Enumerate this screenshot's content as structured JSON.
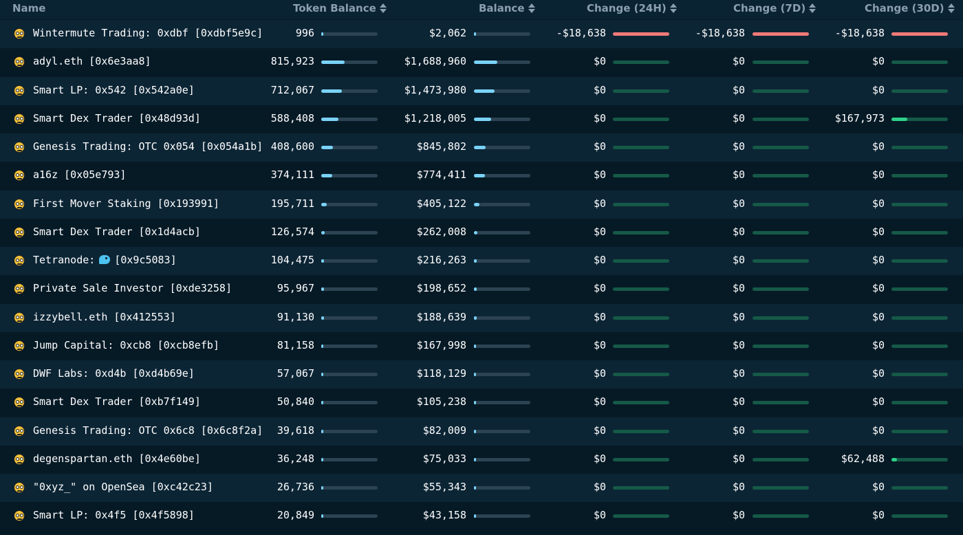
{
  "header": {
    "name": "Name",
    "token_balance": "Token Balance",
    "balance": "Balance",
    "change_24h": "Change (24H)",
    "change_7d": "Change (7D)",
    "change_30d": "Change (30D)"
  },
  "colors": {
    "row_even": "#0c2535",
    "row_odd": "#061a26",
    "balance_bar": "#7ad3f7",
    "negative_change": "#f07a78",
    "positive_change": "#2fd08a",
    "neutral_track": "#155a47"
  },
  "rows": [
    {
      "name": "Wintermute Trading: 0xdbf [0xdbf5e9c]",
      "token_balance": "996",
      "token_fill": 0.0,
      "balance": "$2,062",
      "balance_fill": 0.0,
      "c24": "-$18,638",
      "c24_fill": 1.0,
      "c24_dir": "neg",
      "c7": "-$18,638",
      "c7_fill": 1.0,
      "c7_dir": "neg",
      "c30": "-$18,638",
      "c30_fill": 1.0,
      "c30_dir": "neg"
    },
    {
      "name": "adyl.eth [0x6e3aa8]",
      "token_balance": "815,923",
      "token_fill": 0.42,
      "balance": "$1,688,960",
      "balance_fill": 0.42,
      "c24": "$0",
      "c24_fill": 0,
      "c24_dir": "zero",
      "c7": "$0",
      "c7_fill": 0,
      "c7_dir": "zero",
      "c30": "$0",
      "c30_fill": 0,
      "c30_dir": "zero"
    },
    {
      "name": "Smart LP: 0x542 [0x542a0e]",
      "token_balance": "712,067",
      "token_fill": 0.37,
      "balance": "$1,473,980",
      "balance_fill": 0.37,
      "c24": "$0",
      "c24_fill": 0,
      "c24_dir": "zero",
      "c7": "$0",
      "c7_fill": 0,
      "c7_dir": "zero",
      "c30": "$0",
      "c30_fill": 0,
      "c30_dir": "zero"
    },
    {
      "name": "Smart Dex Trader [0x48d93d]",
      "token_balance": "588,408",
      "token_fill": 0.3,
      "balance": "$1,218,005",
      "balance_fill": 0.3,
      "c24": "$0",
      "c24_fill": 0,
      "c24_dir": "zero",
      "c7": "$0",
      "c7_fill": 0,
      "c7_dir": "zero",
      "c30": "$167,973",
      "c30_fill": 0.28,
      "c30_dir": "pos"
    },
    {
      "name": "Genesis Trading: OTC 0x054 [0x054a1b]",
      "token_balance": "408,600",
      "token_fill": 0.21,
      "balance": "$845,802",
      "balance_fill": 0.21,
      "c24": "$0",
      "c24_fill": 0,
      "c24_dir": "zero",
      "c7": "$0",
      "c7_fill": 0,
      "c7_dir": "zero",
      "c30": "$0",
      "c30_fill": 0,
      "c30_dir": "zero"
    },
    {
      "name": "a16z [0x05e793]",
      "token_balance": "374,111",
      "token_fill": 0.19,
      "balance": "$774,411",
      "balance_fill": 0.19,
      "c24": "$0",
      "c24_fill": 0,
      "c24_dir": "zero",
      "c7": "$0",
      "c7_fill": 0,
      "c7_dir": "zero",
      "c30": "$0",
      "c30_fill": 0,
      "c30_dir": "zero"
    },
    {
      "name": "First Mover Staking [0x193991]",
      "token_balance": "195,711",
      "token_fill": 0.1,
      "balance": "$405,122",
      "balance_fill": 0.1,
      "c24": "$0",
      "c24_fill": 0,
      "c24_dir": "zero",
      "c7": "$0",
      "c7_fill": 0,
      "c7_dir": "zero",
      "c30": "$0",
      "c30_fill": 0,
      "c30_dir": "zero"
    },
    {
      "name": "Smart Dex Trader [0x1d4acb]",
      "token_balance": "126,574",
      "token_fill": 0.065,
      "balance": "$262,008",
      "balance_fill": 0.065,
      "c24": "$0",
      "c24_fill": 0,
      "c24_dir": "zero",
      "c7": "$0",
      "c7_fill": 0,
      "c7_dir": "zero",
      "c30": "$0",
      "c30_fill": 0,
      "c30_dir": "zero"
    },
    {
      "name_prefix": "Tetranode:",
      "name_suffix": "[0x9c5083]",
      "has_bird": true,
      "token_balance": "104,475",
      "token_fill": 0.054,
      "balance": "$216,263",
      "balance_fill": 0.054,
      "c24": "$0",
      "c24_fill": 0,
      "c24_dir": "zero",
      "c7": "$0",
      "c7_fill": 0,
      "c7_dir": "zero",
      "c30": "$0",
      "c30_fill": 0,
      "c30_dir": "zero"
    },
    {
      "name": "Private Sale Investor [0xde3258]",
      "token_balance": "95,967",
      "token_fill": 0.05,
      "balance": "$198,652",
      "balance_fill": 0.05,
      "c24": "$0",
      "c24_fill": 0,
      "c24_dir": "zero",
      "c7": "$0",
      "c7_fill": 0,
      "c7_dir": "zero",
      "c30": "$0",
      "c30_fill": 0,
      "c30_dir": "zero"
    },
    {
      "name": "izzybell.eth [0x412553]",
      "token_balance": "91,130",
      "token_fill": 0.047,
      "balance": "$188,639",
      "balance_fill": 0.047,
      "c24": "$0",
      "c24_fill": 0,
      "c24_dir": "zero",
      "c7": "$0",
      "c7_fill": 0,
      "c7_dir": "zero",
      "c30": "$0",
      "c30_fill": 0,
      "c30_dir": "zero"
    },
    {
      "name": "Jump Capital: 0xcb8 [0xcb8efb]",
      "token_balance": "81,158",
      "token_fill": 0.042,
      "balance": "$167,998",
      "balance_fill": 0.042,
      "c24": "$0",
      "c24_fill": 0,
      "c24_dir": "zero",
      "c7": "$0",
      "c7_fill": 0,
      "c7_dir": "zero",
      "c30": "$0",
      "c30_fill": 0,
      "c30_dir": "zero"
    },
    {
      "name": "DWF Labs: 0xd4b [0xd4b69e]",
      "token_balance": "57,067",
      "token_fill": 0.03,
      "balance": "$118,129",
      "balance_fill": 0.03,
      "c24": "$0",
      "c24_fill": 0,
      "c24_dir": "zero",
      "c7": "$0",
      "c7_fill": 0,
      "c7_dir": "zero",
      "c30": "$0",
      "c30_fill": 0,
      "c30_dir": "zero"
    },
    {
      "name": "Smart Dex Trader [0xb7f149]",
      "token_balance": "50,840",
      "token_fill": 0.026,
      "balance": "$105,238",
      "balance_fill": 0.026,
      "c24": "$0",
      "c24_fill": 0,
      "c24_dir": "zero",
      "c7": "$0",
      "c7_fill": 0,
      "c7_dir": "zero",
      "c30": "$0",
      "c30_fill": 0,
      "c30_dir": "zero"
    },
    {
      "name": "Genesis Trading: OTC 0x6c8 [0x6c8f2a]",
      "token_balance": "39,618",
      "token_fill": 0.02,
      "balance": "$82,009",
      "balance_fill": 0.02,
      "c24": "$0",
      "c24_fill": 0,
      "c24_dir": "zero",
      "c7": "$0",
      "c7_fill": 0,
      "c7_dir": "zero",
      "c30": "$0",
      "c30_fill": 0,
      "c30_dir": "zero"
    },
    {
      "name": "degenspartan.eth [0x4e60be]",
      "token_balance": "36,248",
      "token_fill": 0.019,
      "balance": "$75,033",
      "balance_fill": 0.019,
      "c24": "$0",
      "c24_fill": 0,
      "c24_dir": "zero",
      "c7": "$0",
      "c7_fill": 0,
      "c7_dir": "zero",
      "c30": "$62,488",
      "c30_fill": 0.1,
      "c30_dir": "pos"
    },
    {
      "name": "\"0xyz_\" on OpenSea [0xc42c23]",
      "token_balance": "26,736",
      "token_fill": 0.014,
      "balance": "$55,343",
      "balance_fill": 0.014,
      "c24": "$0",
      "c24_fill": 0,
      "c24_dir": "zero",
      "c7": "$0",
      "c7_fill": 0,
      "c7_dir": "zero",
      "c30": "$0",
      "c30_fill": 0,
      "c30_dir": "zero"
    },
    {
      "name": "Smart LP: 0x4f5 [0x4f5898]",
      "token_balance": "20,849",
      "token_fill": 0.011,
      "balance": "$43,158",
      "balance_fill": 0.011,
      "c24": "$0",
      "c24_fill": 0,
      "c24_dir": "zero",
      "c7": "$0",
      "c7_fill": 0,
      "c7_dir": "zero",
      "c30": "$0",
      "c30_fill": 0,
      "c30_dir": "zero"
    }
  ]
}
